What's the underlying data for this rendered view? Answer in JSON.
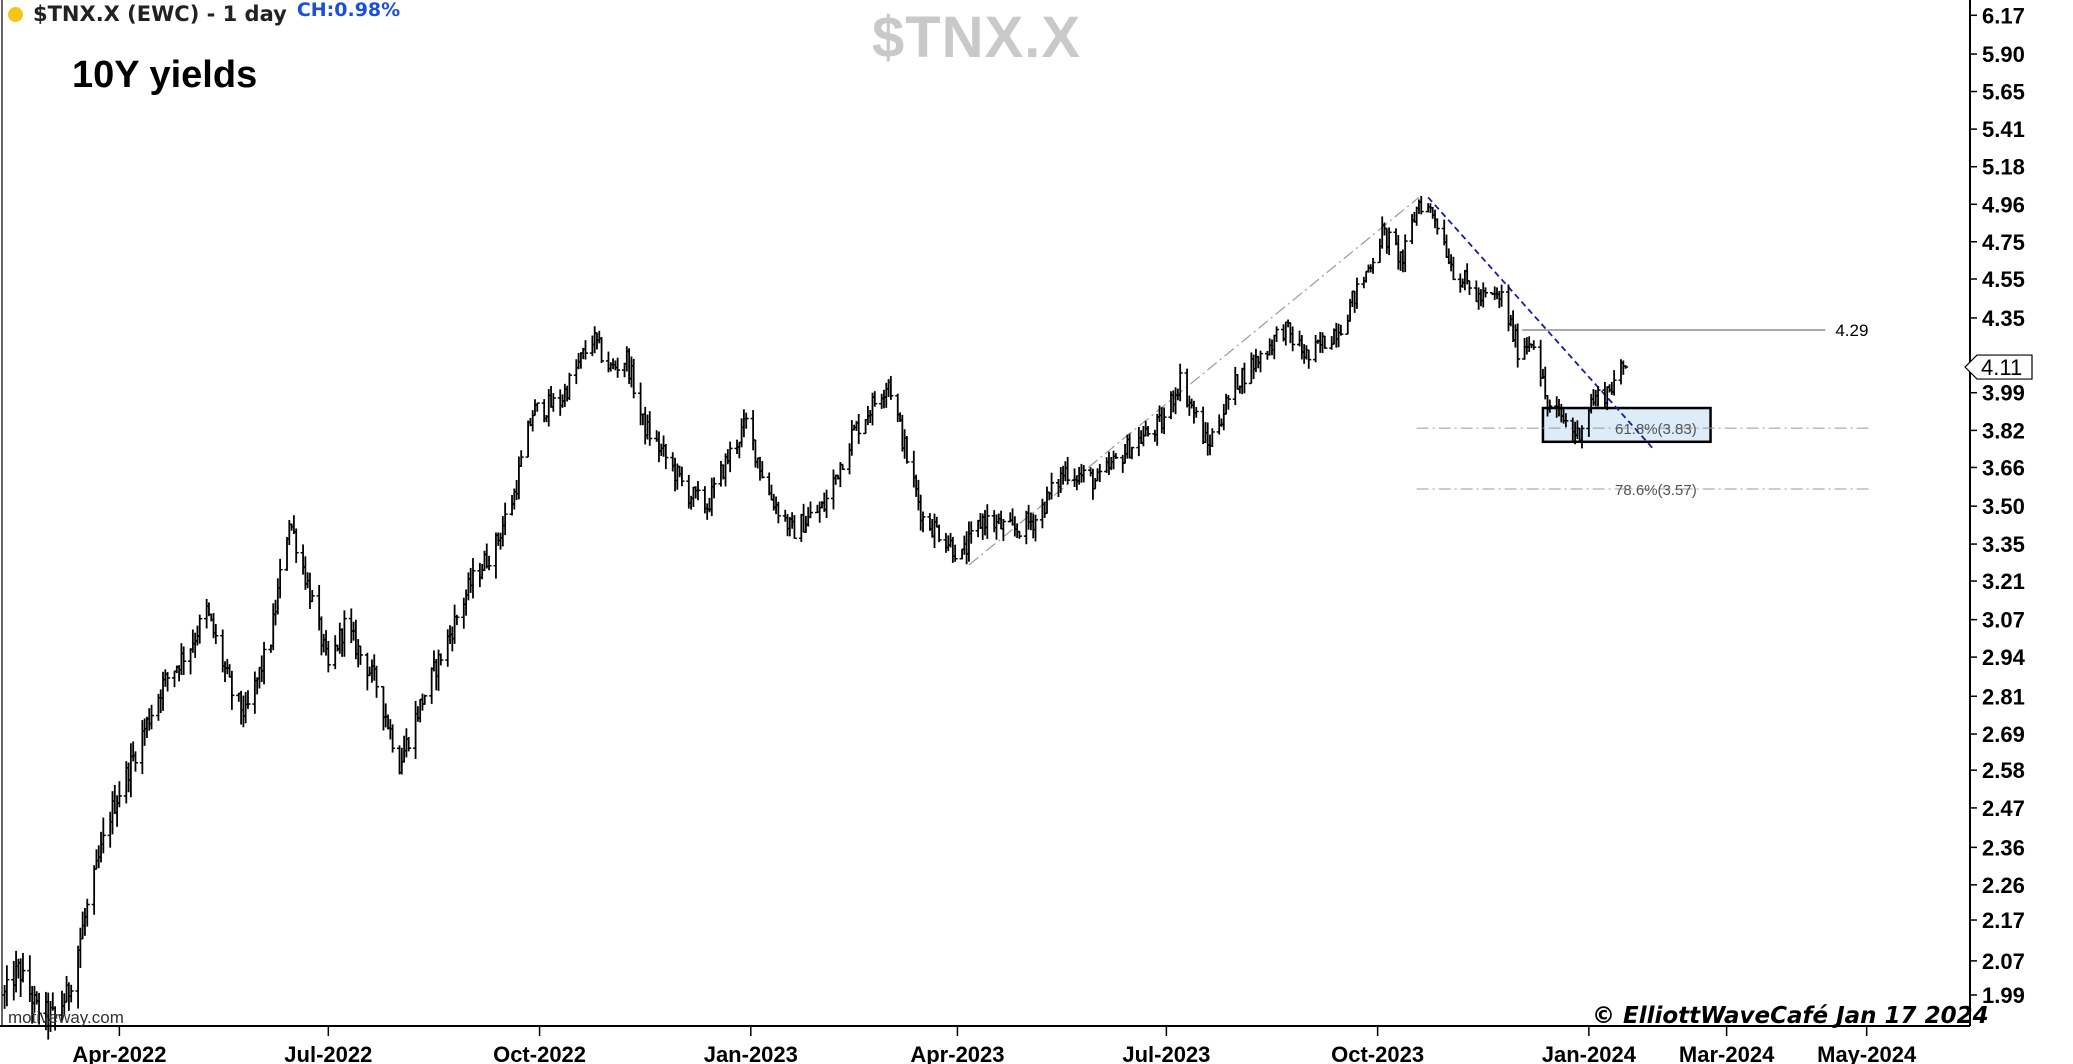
{
  "header": {
    "symbol_line": "$TNX.X (EWC) - 1 day",
    "change": "CH:0.98%",
    "status_dot_color": "#f5c518"
  },
  "watermark": "$TNX.X",
  "subtitle": "10Y yields",
  "copyright": "© ElliottWaveCafé Jan 17 2024",
  "source": "motiveway.com",
  "chart_data": {
    "type": "ohlc",
    "ylim": [
      1.92,
      6.28
    ],
    "y_scale": "log",
    "y_ticks": [
      "6.17",
      "5.90",
      "5.65",
      "5.41",
      "5.18",
      "4.96",
      "4.75",
      "4.55",
      "4.35",
      "4.11",
      "3.99",
      "3.82",
      "3.66",
      "3.50",
      "3.35",
      "3.21",
      "3.07",
      "2.94",
      "2.81",
      "2.69",
      "2.58",
      "2.47",
      "2.36",
      "2.26",
      "2.17",
      "2.07",
      "1.99"
    ],
    "x_ticks": [
      "Apr-2022",
      "Jul-2022",
      "Oct-2022",
      "Jan-2023",
      "Apr-2023",
      "Jul-2023",
      "Oct-2023",
      "Jan-2024",
      "Mar-2024",
      "May-2024"
    ],
    "x_tick_dates": [
      "2022-04-01",
      "2022-07-01",
      "2022-10-01",
      "2023-01-01",
      "2023-04-01",
      "2023-07-01",
      "2023-10-01",
      "2024-01-01",
      "2024-03-01",
      "2024-05-01"
    ],
    "xlim": [
      "2022-02-08",
      "2024-06-15"
    ],
    "last_price_label": "4.11",
    "last_price": 4.11,
    "price_path": [
      [
        "2022-02-10",
        1.99
      ],
      [
        "2022-02-16",
        2.05
      ],
      [
        "2022-02-24",
        1.96
      ],
      [
        "2022-03-04",
        1.94
      ],
      [
        "2022-03-10",
        2.0
      ],
      [
        "2022-03-18",
        2.2
      ],
      [
        "2022-03-28",
        2.45
      ],
      [
        "2022-04-06",
        2.6
      ],
      [
        "2022-04-20",
        2.85
      ],
      [
        "2022-05-02",
        2.98
      ],
      [
        "2022-05-09",
        3.1
      ],
      [
        "2022-05-20",
        2.82
      ],
      [
        "2022-05-26",
        2.75
      ],
      [
        "2022-06-06",
        3.0
      ],
      [
        "2022-06-14",
        3.45
      ],
      [
        "2022-06-22",
        3.2
      ],
      [
        "2022-07-01",
        2.9
      ],
      [
        "2022-07-08",
        3.05
      ],
      [
        "2022-07-15",
        2.95
      ],
      [
        "2022-07-22",
        2.85
      ],
      [
        "2022-08-01",
        2.6
      ],
      [
        "2022-08-10",
        2.78
      ],
      [
        "2022-08-22",
        3.0
      ],
      [
        "2022-09-01",
        3.2
      ],
      [
        "2022-09-12",
        3.35
      ],
      [
        "2022-09-20",
        3.55
      ],
      [
        "2022-09-28",
        3.9
      ],
      [
        "2022-10-10",
        3.95
      ],
      [
        "2022-10-24",
        4.25
      ],
      [
        "2022-11-01",
        4.1
      ],
      [
        "2022-11-08",
        4.15
      ],
      [
        "2022-11-15",
        3.85
      ],
      [
        "2022-11-25",
        3.7
      ],
      [
        "2022-12-05",
        3.55
      ],
      [
        "2022-12-13",
        3.5
      ],
      [
        "2022-12-22",
        3.7
      ],
      [
        "2022-12-30",
        3.85
      ],
      [
        "2023-01-09",
        3.55
      ],
      [
        "2023-01-19",
        3.4
      ],
      [
        "2023-02-02",
        3.5
      ],
      [
        "2023-02-14",
        3.8
      ],
      [
        "2023-02-24",
        3.95
      ],
      [
        "2023-03-02",
        4.05
      ],
      [
        "2023-03-10",
        3.7
      ],
      [
        "2023-03-17",
        3.45
      ],
      [
        "2023-03-24",
        3.4
      ],
      [
        "2023-04-03",
        3.3
      ],
      [
        "2023-04-12",
        3.45
      ],
      [
        "2023-04-25",
        3.4
      ],
      [
        "2023-05-05",
        3.45
      ],
      [
        "2023-05-18",
        3.65
      ],
      [
        "2023-06-01",
        3.6
      ],
      [
        "2023-06-15",
        3.75
      ],
      [
        "2023-06-29",
        3.85
      ],
      [
        "2023-07-07",
        4.05
      ],
      [
        "2023-07-19",
        3.75
      ],
      [
        "2023-08-01",
        4.05
      ],
      [
        "2023-08-10",
        4.15
      ],
      [
        "2023-08-21",
        4.3
      ],
      [
        "2023-09-01",
        4.15
      ],
      [
        "2023-09-15",
        4.32
      ],
      [
        "2023-09-25",
        4.55
      ],
      [
        "2023-10-03",
        4.8
      ],
      [
        "2023-10-12",
        4.65
      ],
      [
        "2023-10-19",
        4.98
      ],
      [
        "2023-10-26",
        4.9
      ],
      [
        "2023-11-03",
        4.6
      ],
      [
        "2023-11-14",
        4.45
      ],
      [
        "2023-11-24",
        4.45
      ],
      [
        "2023-12-01",
        4.2
      ],
      [
        "2023-12-08",
        4.25
      ],
      [
        "2023-12-14",
        3.92
      ],
      [
        "2023-12-20",
        3.88
      ],
      [
        "2023-12-27",
        3.8
      ],
      [
        "2024-01-02",
        3.95
      ],
      [
        "2024-01-09",
        4.0
      ],
      [
        "2024-01-17",
        4.11
      ]
    ],
    "annotations": [
      {
        "type": "hline_label",
        "value": 4.29,
        "label": "4.29",
        "from": "2023-12-03",
        "to": "2024-04-13"
      },
      {
        "type": "fib_level",
        "value": 3.83,
        "label": "61.8%(3.83)",
        "from": "2023-10-18",
        "to": "2024-05-03"
      },
      {
        "type": "fib_level",
        "value": 3.57,
        "label": "78.6%(3.57)",
        "from": "2023-10-18",
        "to": "2024-05-03"
      },
      {
        "type": "box",
        "from": "2023-12-12",
        "to": "2024-02-23",
        "ymax": 3.92,
        "ymin": 3.77
      },
      {
        "type": "trendline",
        "color": "#1a1aa8",
        "style": "dashed",
        "points": [
          [
            "2023-10-23",
            5.0
          ],
          [
            "2024-01-29",
            3.74
          ]
        ]
      },
      {
        "type": "fib_base",
        "color": "#9a9a9a",
        "style": "dash-dot",
        "points": [
          [
            "2023-04-06",
            3.27
          ],
          [
            "2023-10-19",
            5.0
          ]
        ]
      }
    ]
  }
}
